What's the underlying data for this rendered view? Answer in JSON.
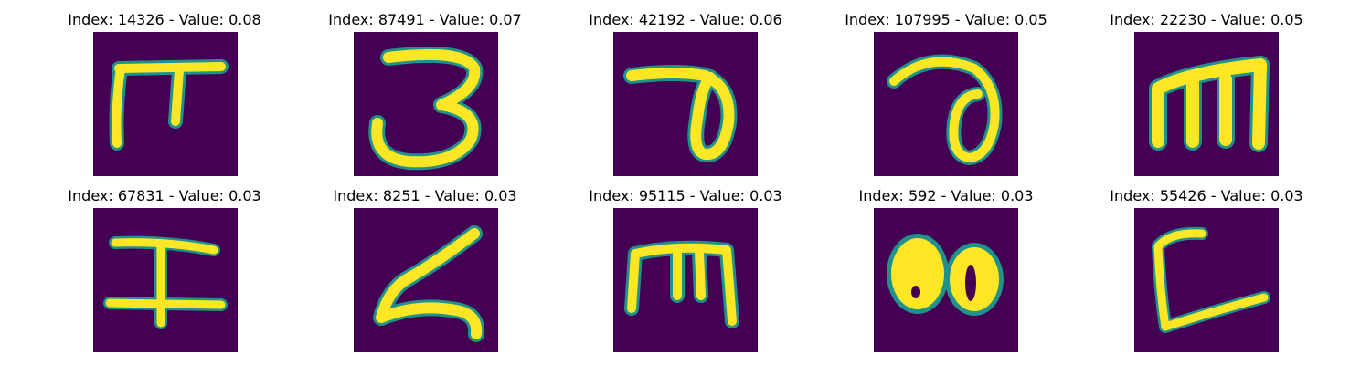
{
  "panels": [
    {
      "index_label": "Index: 14326 - Value: 0.08",
      "glyph": "handwritten-character"
    },
    {
      "index_label": "Index: 87491 - Value: 0.07",
      "glyph": "handwritten-character"
    },
    {
      "index_label": "Index: 42192 - Value: 0.06",
      "glyph": "handwritten-character"
    },
    {
      "index_label": "Index: 107995 - Value: 0.05",
      "glyph": "handwritten-character"
    },
    {
      "index_label": "Index: 22230 - Value: 0.05",
      "glyph": "handwritten-character"
    },
    {
      "index_label": "Index: 67831 - Value: 0.03",
      "glyph": "handwritten-character"
    },
    {
      "index_label": "Index: 8251 - Value: 0.03",
      "glyph": "handwritten-character"
    },
    {
      "index_label": "Index: 95115 - Value: 0.03",
      "glyph": "handwritten-character"
    },
    {
      "index_label": "Index: 592 - Value: 0.03",
      "glyph": "handwritten-character"
    },
    {
      "index_label": "Index: 55426 - Value: 0.03",
      "glyph": "handwritten-character"
    }
  ],
  "colors": {
    "background": "#440154",
    "edge": "#21918c",
    "stroke": "#fde725"
  }
}
